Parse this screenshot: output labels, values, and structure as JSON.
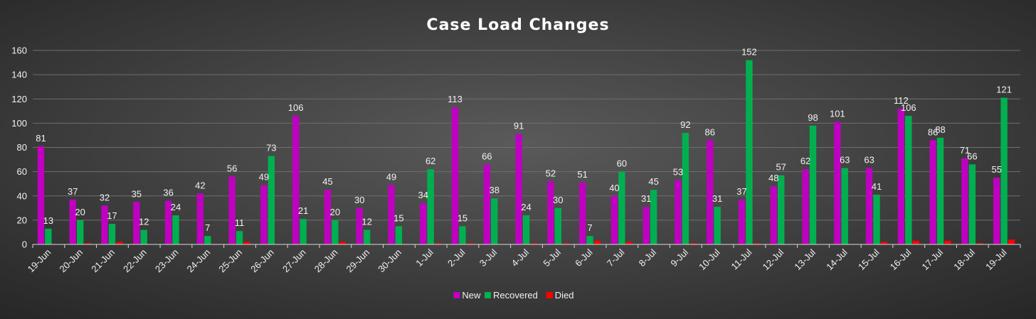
{
  "chart_data": {
    "type": "bar",
    "title": "Case Load Changes",
    "xlabel": "",
    "ylabel": "",
    "ylim": [
      0,
      160
    ],
    "yticks": [
      0,
      20,
      40,
      60,
      80,
      100,
      120,
      140,
      160
    ],
    "grid": true,
    "legend": "bottom",
    "categories": [
      "19-Jun",
      "20-Jun",
      "21-Jun",
      "22-Jun",
      "23-Jun",
      "24-Jun",
      "25-Jun",
      "26-Jun",
      "27-Jun",
      "28-Jun",
      "29-Jun",
      "30-Jun",
      "1-Jul",
      "2-Jul",
      "3-Jul",
      "4-Jul",
      "5-Jul",
      "6-Jul",
      "7-Jul",
      "8-Jul",
      "9-Jul",
      "10-Jul",
      "11-Jul",
      "12-Jul",
      "13-Jul",
      "14-Jul",
      "15-Jul",
      "16-Jul",
      "17-Jul",
      "18-Jul",
      "19-Jul"
    ],
    "series": [
      {
        "name": "New",
        "color": "#c000c0",
        "labeled": true,
        "values": [
          81,
          37,
          32,
          35,
          36,
          42,
          56,
          49,
          106,
          45,
          30,
          49,
          34,
          113,
          66,
          91,
          52,
          51,
          40,
          31,
          53,
          86,
          37,
          48,
          62,
          101,
          63,
          112,
          86,
          71,
          55
        ]
      },
      {
        "name": "Recovered",
        "color": "#00b050",
        "labeled": true,
        "values": [
          13,
          20,
          17,
          12,
          24,
          7,
          11,
          73,
          21,
          20,
          12,
          15,
          62,
          15,
          38,
          24,
          30,
          7,
          60,
          45,
          92,
          31,
          152,
          57,
          98,
          63,
          41,
          106,
          88,
          66,
          121
        ]
      },
      {
        "name": "Died",
        "color": "#ff0000",
        "labeled": false,
        "values": [
          0,
          1,
          2,
          0,
          0,
          0,
          2,
          0,
          0,
          2,
          0,
          0,
          1,
          1,
          0,
          1,
          1,
          3,
          2,
          0,
          1,
          0,
          1,
          0,
          0,
          0,
          2,
          3,
          3,
          1,
          4
        ]
      }
    ]
  }
}
